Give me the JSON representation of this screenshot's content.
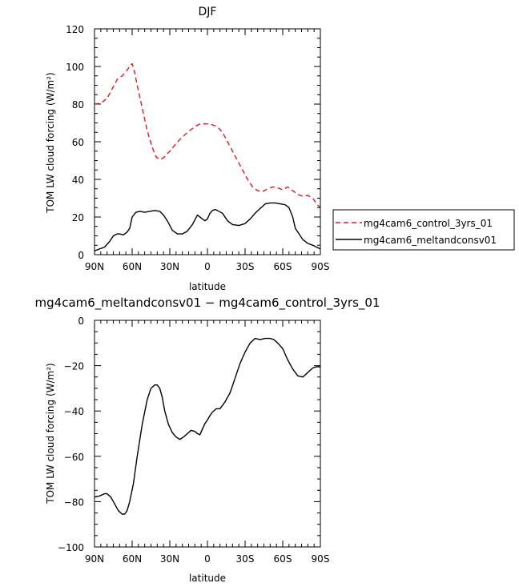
{
  "chart_data": [
    {
      "type": "line",
      "title": "DJF",
      "xlabel": "latitude",
      "ylabel": "TOM LW cloud forcing (W/m²)",
      "xlim": [
        90,
        -90
      ],
      "ylim": [
        0,
        120
      ],
      "x_ticks": [
        90,
        60,
        30,
        0,
        -30,
        -60,
        -90
      ],
      "x_tick_labels": [
        "90N",
        "60N",
        "30N",
        "0",
        "30S",
        "60S",
        "90S"
      ],
      "y_ticks": [
        0,
        20,
        40,
        60,
        80,
        100,
        120
      ],
      "y_tick_labels": [
        "0",
        "20",
        "40",
        "60",
        "80",
        "100",
        "120"
      ],
      "legend_position": "right",
      "series": [
        {
          "name": "mg4cam6_control_3yrs_01",
          "color": "#e8141c",
          "dash": "dashed",
          "x": [
            90,
            85,
            80,
            76,
            72,
            68,
            64,
            62,
            60,
            58,
            56,
            52,
            48,
            44,
            41,
            38,
            35,
            30,
            25,
            20,
            15,
            10,
            6,
            2,
            0,
            -4,
            -8,
            -12,
            -16,
            -20,
            -24,
            -28,
            -32,
            -36,
            -40,
            -44,
            -48,
            -52,
            -56,
            -60,
            -64,
            -68,
            -72,
            -76,
            -80,
            -84,
            -87,
            -90
          ],
          "y": [
            80,
            80.5,
            83,
            88,
            93,
            95,
            98,
            100,
            101.5,
            97,
            90,
            78,
            66,
            57,
            52,
            50.5,
            51.5,
            55,
            59,
            62.5,
            65.5,
            68,
            69.5,
            69.5,
            69.5,
            69,
            68,
            65,
            60,
            55,
            50,
            45,
            40,
            36,
            34,
            33.5,
            35,
            36,
            35.5,
            34.5,
            36,
            34,
            32,
            31,
            31.5,
            30,
            27,
            25
          ]
        },
        {
          "name": "mg4cam6_meltandconsv01",
          "color": "#000000",
          "dash": "solid",
          "x": [
            90,
            86,
            82,
            78,
            75,
            72,
            70,
            67,
            64,
            62,
            60,
            57,
            54,
            50,
            46,
            42,
            38,
            35,
            32,
            28,
            24,
            20,
            16,
            12,
            8,
            4,
            2,
            0,
            -2,
            -4,
            -6,
            -8,
            -12,
            -16,
            -20,
            -25,
            -30,
            -34,
            -38,
            -42,
            -46,
            -50,
            -54,
            -58,
            -62,
            -65,
            -68,
            -70,
            -73,
            -76,
            -80,
            -84,
            -87,
            -90
          ],
          "y": [
            2,
            3,
            4,
            7,
            10,
            11,
            11,
            10.5,
            12,
            14,
            20,
            22.5,
            23,
            22.5,
            23,
            23.5,
            23,
            21,
            18,
            13,
            11,
            11,
            12.5,
            16,
            21,
            19,
            18,
            19,
            22,
            23.5,
            24,
            23.5,
            22,
            18,
            16,
            15.5,
            16.5,
            19,
            22,
            24.5,
            27,
            27.5,
            27.5,
            27,
            26.5,
            25,
            20,
            14,
            11,
            8,
            6,
            5,
            4,
            3
          ]
        }
      ]
    },
    {
      "type": "line",
      "title": "mg4cam6_meltandconsv01 − mg4cam6_control_3yrs_01",
      "xlabel": "latitude",
      "ylabel": "TOM LW cloud forcing (W/m²)",
      "xlim": [
        90,
        -90
      ],
      "ylim": [
        -100,
        0
      ],
      "x_ticks": [
        90,
        60,
        30,
        0,
        -30,
        -60,
        -90
      ],
      "x_tick_labels": [
        "90N",
        "60N",
        "30N",
        "0",
        "30S",
        "60S",
        "90S"
      ],
      "y_ticks": [
        -100,
        -80,
        -60,
        -40,
        -20,
        0
      ],
      "y_tick_labels": [
        "−100",
        "−80",
        "−60",
        "−40",
        "−20",
        "0"
      ],
      "series": [
        {
          "color": "#000000",
          "dash": "solid",
          "x": [
            90,
            86,
            82,
            80,
            77,
            74,
            71,
            68,
            66,
            64,
            62,
            59,
            56,
            52,
            48,
            45,
            42,
            40,
            38,
            36,
            34,
            31,
            28,
            25,
            22,
            19,
            16,
            13,
            10,
            8,
            6,
            4,
            2,
            0,
            -2,
            -4,
            -7,
            -10,
            -14,
            -18,
            -22,
            -26,
            -30,
            -34,
            -38,
            -42,
            -46,
            -50,
            -53,
            -56,
            -60,
            -64,
            -68,
            -72,
            -76,
            -80,
            -84,
            -87,
            -90
          ],
          "y": [
            -78,
            -77.5,
            -76.5,
            -76.5,
            -78,
            -81,
            -84,
            -85.5,
            -85.5,
            -84,
            -80,
            -72,
            -60,
            -46,
            -35,
            -30,
            -28.5,
            -28.5,
            -30,
            -34,
            -40,
            -46,
            -49.5,
            -51.5,
            -52.5,
            -51.5,
            -50,
            -48.5,
            -49,
            -50,
            -50.5,
            -48,
            -45.5,
            -44,
            -42,
            -40.5,
            -39,
            -39,
            -36,
            -32,
            -25.5,
            -19,
            -14,
            -10,
            -8,
            -8.5,
            -8,
            -8,
            -8.5,
            -10,
            -12.5,
            -17.5,
            -21.5,
            -24.5,
            -25,
            -23,
            -21,
            -20.5,
            -20.5
          ]
        }
      ]
    }
  ]
}
